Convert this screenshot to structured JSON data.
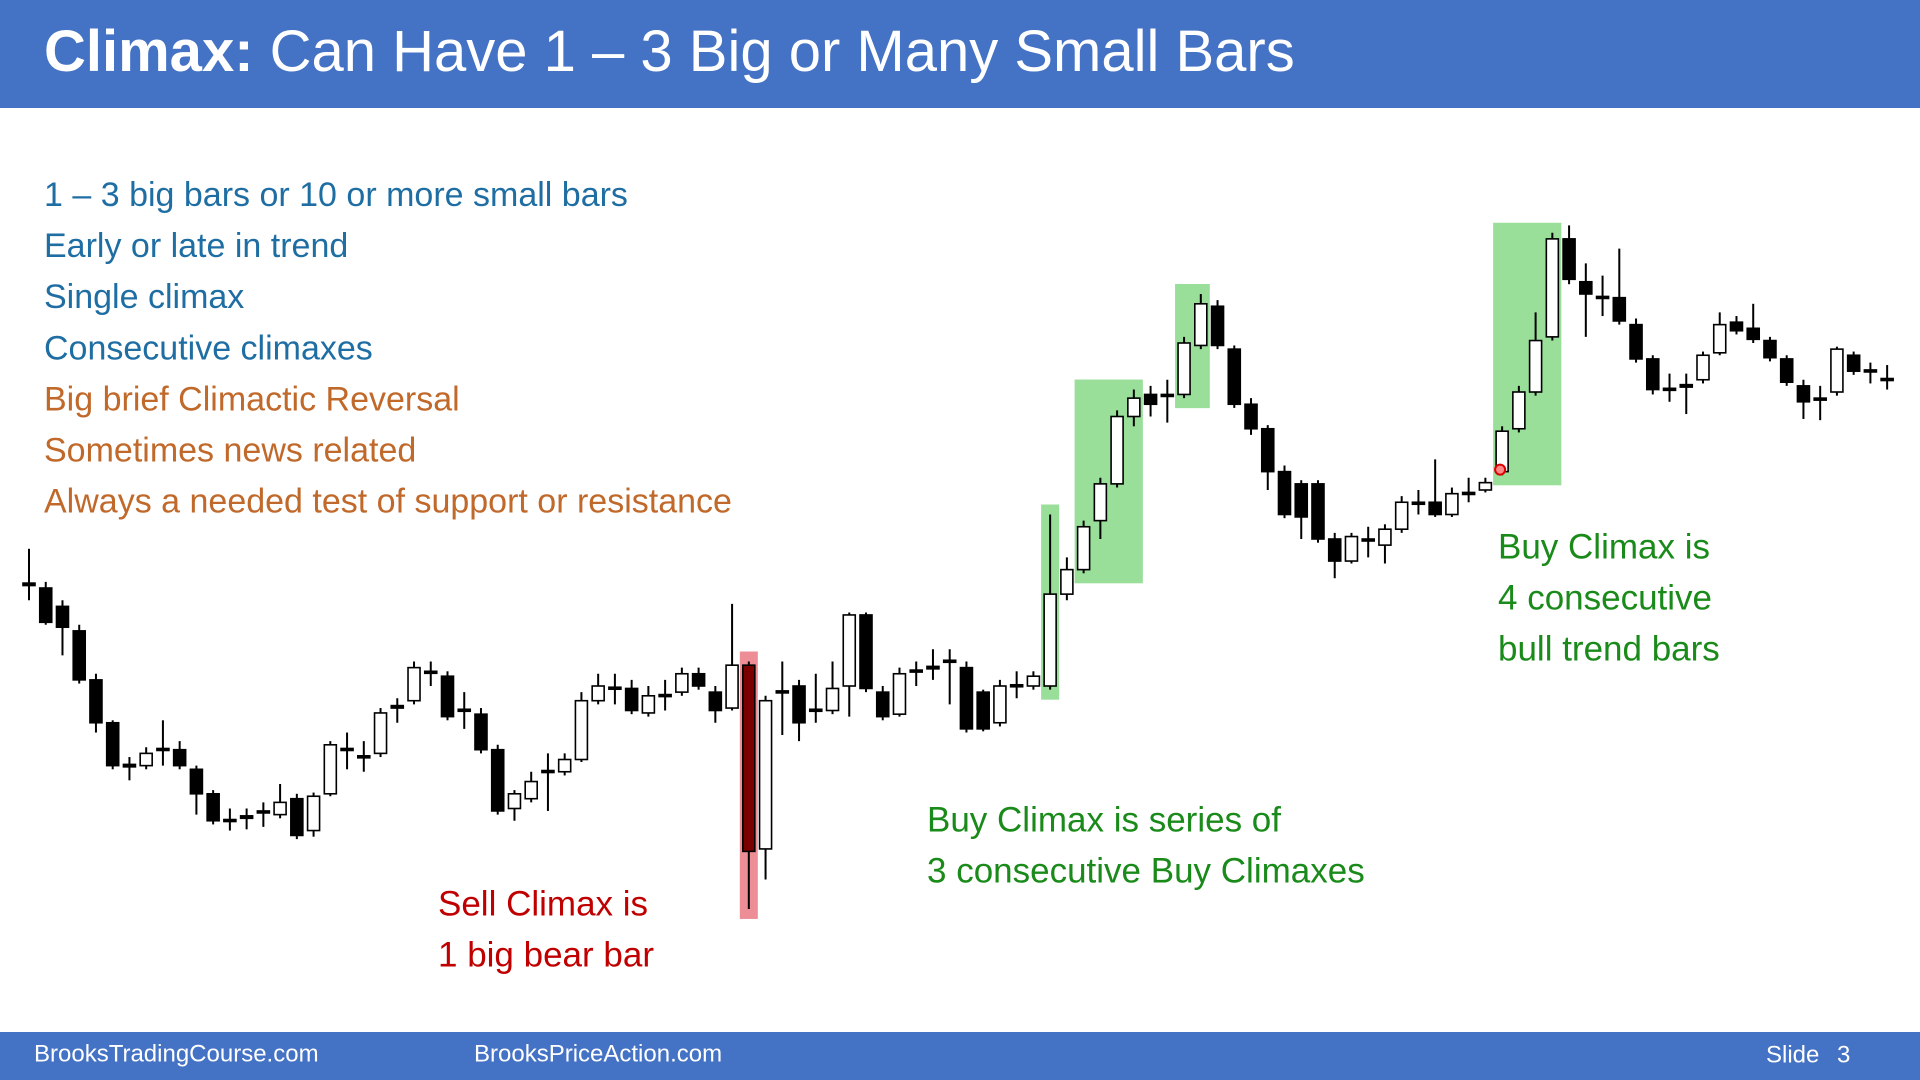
{
  "header": {
    "title_bold": "Climax:",
    "title_rest": "Can Have 1 – 3 Big or Many Small Bars"
  },
  "bullets": [
    {
      "text": "1 – 3 big bars or 10 or more small bars",
      "color": "#1f6ea3"
    },
    {
      "text": "Early or late in trend",
      "color": "#1f6ea3"
    },
    {
      "text": "Single climax",
      "color": "#1f6ea3"
    },
    {
      "text": "Consecutive climaxes",
      "color": "#1f6ea3"
    },
    {
      "text": "Big brief Climactic Reversal",
      "color": "#c0692a"
    },
    {
      "text": "Sometimes news related",
      "color": "#c0692a"
    },
    {
      "text": "Always a needed test of support or resistance",
      "color": "#c0692a"
    }
  ],
  "annotations": [
    {
      "lines": [
        "Sell Climax is",
        "1 big bear bar"
      ],
      "color": "#c00000"
    },
    {
      "lines": [
        "Buy Climax is series of",
        "3 consecutive Buy Climaxes"
      ],
      "color": "#1a8a1a"
    },
    {
      "lines": [
        "Buy Climax is",
        "4 consecutive",
        "bull trend bars"
      ],
      "color": "#1a8a1a"
    }
  ],
  "chart_data": {
    "type": "candlestick",
    "ylim": [
      40,
      640
    ],
    "open": [
      322,
      320,
      305,
      285,
      245,
      210,
      176,
      175,
      188,
      188,
      172,
      152,
      131,
      132,
      137,
      135,
      148,
      122,
      152,
      188,
      182,
      185,
      222,
      228,
      252,
      248,
      220,
      217,
      188,
      140,
      148,
      170,
      170,
      180,
      228,
      238,
      238,
      218,
      232,
      235,
      250,
      235,
      222,
      257,
      107,
      236,
      240,
      221,
      220,
      240,
      298,
      235,
      217,
      253,
      254,
      261,
      255,
      235,
      210,
      240,
      240,
      240,
      315,
      335,
      375,
      405,
      460,
      478,
      477,
      478,
      518,
      550,
      515,
      470,
      450,
      415,
      405,
      405,
      360,
      342,
      359,
      355,
      368,
      389,
      390,
      380,
      397,
      400,
      415,
      450,
      480,
      525,
      605,
      570,
      557,
      557,
      535,
      507,
      483,
      484,
      490,
      512,
      537,
      532,
      522,
      507,
      485,
      474,
      480,
      510,
      497,
      490
    ],
    "high": [
      352,
      325,
      310,
      290,
      250,
      212,
      182,
      190,
      212,
      195,
      175,
      155,
      140,
      140,
      145,
      160,
      152,
      153,
      195,
      202,
      195,
      222,
      230,
      260,
      260,
      252,
      235,
      222,
      192,
      155,
      170,
      185,
      185,
      235,
      250,
      250,
      245,
      240,
      245,
      255,
      255,
      240,
      307,
      260,
      232,
      260,
      245,
      250,
      260,
      300,
      300,
      240,
      255,
      260,
      270,
      270,
      260,
      237,
      245,
      252,
      252,
      380,
      345,
      375,
      410,
      465,
      482,
      485,
      490,
      525,
      560,
      555,
      518,
      475,
      453,
      420,
      408,
      408,
      365,
      365,
      370,
      372,
      395,
      400,
      425,
      402,
      410,
      410,
      452,
      485,
      545,
      610,
      616,
      585,
      575,
      597,
      540,
      510,
      495,
      495,
      513,
      545,
      542,
      552,
      525,
      510,
      490,
      485,
      517,
      513,
      504,
      502
    ],
    "low": [
      310,
      290,
      265,
      242,
      202,
      172,
      163,
      172,
      175,
      172,
      135,
      127,
      122,
      123,
      125,
      132,
      115,
      117,
      150,
      172,
      170,
      182,
      210,
      225,
      240,
      212,
      205,
      185,
      135,
      130,
      145,
      138,
      167,
      178,
      225,
      225,
      217,
      215,
      220,
      232,
      237,
      210,
      220,
      58,
      82,
      200,
      195,
      210,
      217,
      215,
      235,
      212,
      215,
      240,
      245,
      225,
      202,
      203,
      207,
      230,
      237,
      237,
      310,
      332,
      360,
      402,
      452,
      460,
      455,
      475,
      515,
      515,
      467,
      445,
      400,
      377,
      360,
      357,
      328,
      340,
      345,
      340,
      365,
      380,
      378,
      378,
      390,
      398,
      412,
      447,
      477,
      522,
      568,
      525,
      542,
      535,
      504,
      478,
      472,
      462,
      487,
      510,
      527,
      520,
      505,
      485,
      458,
      457,
      477,
      494,
      487,
      482
    ],
    "close": [
      324,
      292,
      288,
      245,
      210,
      175,
      174,
      185,
      189,
      175,
      152,
      130,
      130,
      134,
      138,
      145,
      118,
      150,
      192,
      189,
      183,
      218,
      224,
      255,
      251,
      215,
      221,
      188,
      138,
      152,
      162,
      171,
      180,
      228,
      240,
      239,
      220,
      232,
      233,
      250,
      240,
      220,
      257,
      105,
      228,
      235,
      210,
      220,
      238,
      298,
      238,
      215,
      250,
      252,
      256,
      260,
      205,
      205,
      240,
      241,
      248,
      315,
      335,
      370,
      405,
      460,
      475,
      470,
      478,
      520,
      552,
      518,
      470,
      450,
      415,
      380,
      378,
      360,
      342,
      362,
      360,
      368,
      390,
      390,
      380,
      397,
      398,
      406,
      448,
      480,
      522,
      605,
      572,
      560,
      558,
      538,
      507,
      482,
      482,
      486,
      510,
      535,
      530,
      523,
      508,
      488,
      472,
      475,
      515,
      497,
      498,
      491
    ]
  },
  "footer": {
    "left": "BrooksTradingCourse.com",
    "middle": "BrooksPriceAction.com",
    "slide_label": "Slide",
    "slide_number": "3"
  }
}
